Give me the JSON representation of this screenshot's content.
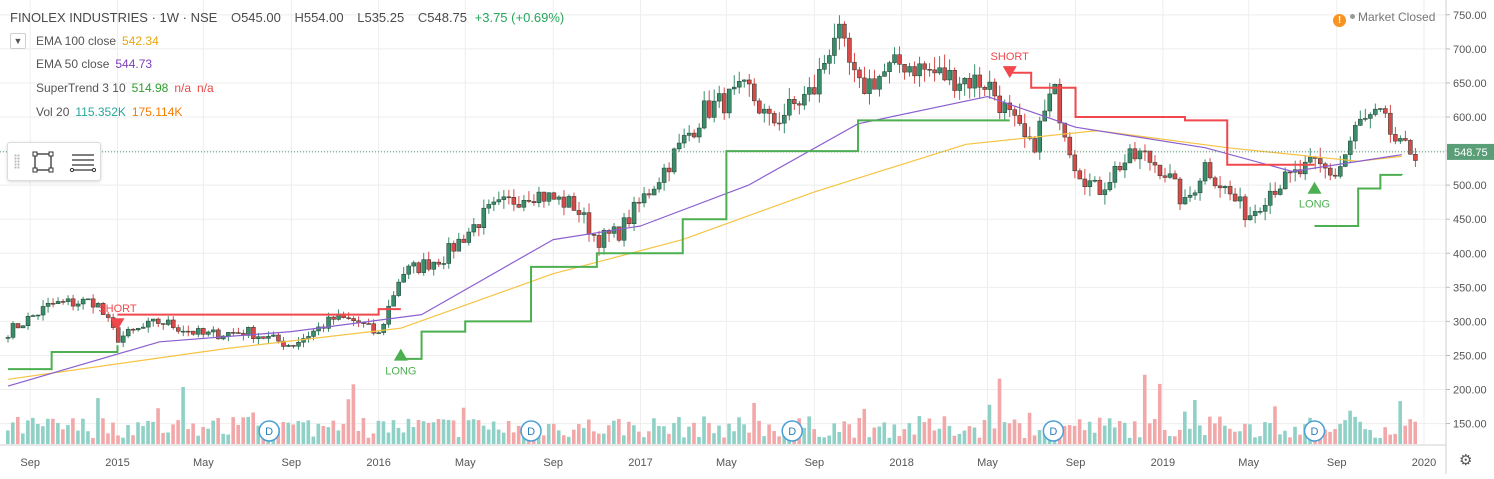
{
  "header": {
    "symbol": "FINOLEX INDUSTRIES · 1W · NSE",
    "open_label": "O",
    "open": "545.00",
    "high_label": "H",
    "high": "554.00",
    "low_label": "L",
    "low": "535.25",
    "close_label": "C",
    "close": "548.75",
    "change": "+3.75 (+0.69%)"
  },
  "indicators": [
    {
      "label": "EMA 100 close",
      "values": [
        "542.34"
      ],
      "colors": [
        "#e8a70c"
      ]
    },
    {
      "label": "EMA 50 close",
      "values": [
        "544.73"
      ],
      "colors": [
        "#7b3fb8"
      ]
    },
    {
      "label": "SuperTrend 3 10",
      "values": [
        "514.98",
        "n/a",
        "n/a"
      ],
      "colors": [
        "#2e9e2e",
        "#e84a4a",
        "#e84a4a"
      ]
    },
    {
      "label": "Vol 20",
      "values": [
        "115.352K",
        "175.114K"
      ],
      "colors": [
        "#26a69a",
        "#f57c00"
      ]
    }
  ],
  "market_status": {
    "text": "Market Closed",
    "icon": "warning-icon"
  },
  "price_tag": "548.75",
  "colors": {
    "up": "#3a8d6a",
    "down": "#d64a4a",
    "ema100": "#f6c343",
    "ema50": "#8a5fd0",
    "st_up": "#4caf50",
    "st_down": "#f0484c",
    "vol_up": "#8fd1c6",
    "vol_down": "#f2a8a8",
    "axis_text": "#555555",
    "grid": "#eeeeee",
    "price_tag_bg": "#5a9e78"
  },
  "toolbox": {
    "tools": [
      "rectangle-tool-icon",
      "menu-lines-icon"
    ]
  },
  "chart_data": {
    "type": "candlestick",
    "title": "FINOLEX INDUSTRIES · 1W · NSE",
    "x_axis": {
      "range": [
        "2014-08",
        "2020-01"
      ],
      "tick_labels": [
        "Sep",
        "2015",
        "May",
        "Sep",
        "2016",
        "May",
        "Sep",
        "2017",
        "May",
        "Sep",
        "2018",
        "May",
        "Sep",
        "2019",
        "May",
        "Sep",
        "2020"
      ]
    },
    "y_axis": {
      "range": [
        120,
        760
      ],
      "tick_labels": [
        "150.00",
        "200.00",
        "250.00",
        "300.00",
        "350.00",
        "400.00",
        "450.00",
        "500.00",
        "550.00",
        "600.00",
        "650.00",
        "700.00",
        "750.00"
      ]
    },
    "grid": true,
    "close_anchors": [
      {
        "x": "2014-08",
        "y": 285
      },
      {
        "x": "2014-10",
        "y": 325
      },
      {
        "x": "2014-12",
        "y": 330
      },
      {
        "x": "2015-01",
        "y": 275
      },
      {
        "x": "2015-03",
        "y": 300
      },
      {
        "x": "2015-05",
        "y": 280
      },
      {
        "x": "2015-07",
        "y": 285
      },
      {
        "x": "2015-09",
        "y": 265
      },
      {
        "x": "2015-11",
        "y": 305
      },
      {
        "x": "2015-12",
        "y": 300
      },
      {
        "x": "2016-01",
        "y": 280
      },
      {
        "x": "2016-02",
        "y": 370
      },
      {
        "x": "2016-04",
        "y": 395
      },
      {
        "x": "2016-06",
        "y": 460
      },
      {
        "x": "2016-08",
        "y": 490
      },
      {
        "x": "2016-10",
        "y": 470
      },
      {
        "x": "2016-11",
        "y": 420
      },
      {
        "x": "2016-12",
        "y": 430
      },
      {
        "x": "2017-02",
        "y": 520
      },
      {
        "x": "2017-04",
        "y": 610
      },
      {
        "x": "2017-06",
        "y": 640
      },
      {
        "x": "2017-07",
        "y": 590
      },
      {
        "x": "2017-09",
        "y": 640
      },
      {
        "x": "2017-10",
        "y": 730
      },
      {
        "x": "2017-11",
        "y": 640
      },
      {
        "x": "2018-01",
        "y": 680
      },
      {
        "x": "2018-03",
        "y": 660
      },
      {
        "x": "2018-05",
        "y": 650
      },
      {
        "x": "2018-07",
        "y": 550
      },
      {
        "x": "2018-08",
        "y": 640
      },
      {
        "x": "2018-09",
        "y": 530
      },
      {
        "x": "2018-10",
        "y": 490
      },
      {
        "x": "2018-11",
        "y": 530
      },
      {
        "x": "2018-12",
        "y": 545
      },
      {
        "x": "2019-01",
        "y": 525
      },
      {
        "x": "2019-02",
        "y": 470
      },
      {
        "x": "2019-03",
        "y": 530
      },
      {
        "x": "2019-04",
        "y": 490
      },
      {
        "x": "2019-05",
        "y": 455
      },
      {
        "x": "2019-06",
        "y": 495
      },
      {
        "x": "2019-08",
        "y": 530
      },
      {
        "x": "2019-09",
        "y": 515
      },
      {
        "x": "2019-10",
        "y": 590
      },
      {
        "x": "2019-11",
        "y": 600
      },
      {
        "x": "2019-12",
        "y": 550
      }
    ],
    "ema100": [
      {
        "x": "2014-08",
        "y": 215
      },
      {
        "x": "2015-06",
        "y": 260
      },
      {
        "x": "2016-02",
        "y": 290
      },
      {
        "x": "2016-09",
        "y": 370
      },
      {
        "x": "2017-03",
        "y": 420
      },
      {
        "x": "2017-09",
        "y": 490
      },
      {
        "x": "2018-04",
        "y": 560
      },
      {
        "x": "2018-10",
        "y": 580
      },
      {
        "x": "2019-04",
        "y": 555
      },
      {
        "x": "2019-10",
        "y": 535
      },
      {
        "x": "2019-12",
        "y": 542.34
      }
    ],
    "ema50": [
      {
        "x": "2014-08",
        "y": 205
      },
      {
        "x": "2015-03",
        "y": 270
      },
      {
        "x": "2015-09",
        "y": 285
      },
      {
        "x": "2016-03",
        "y": 310
      },
      {
        "x": "2016-09",
        "y": 420
      },
      {
        "x": "2017-01",
        "y": 440
      },
      {
        "x": "2017-06",
        "y": 500
      },
      {
        "x": "2017-11",
        "y": 590
      },
      {
        "x": "2018-05",
        "y": 630
      },
      {
        "x": "2018-09",
        "y": 585
      },
      {
        "x": "2019-03",
        "y": 555
      },
      {
        "x": "2019-07",
        "y": 520
      },
      {
        "x": "2019-12",
        "y": 544.73
      }
    ],
    "supertrend_up_1": [
      {
        "x": "2014-08",
        "y": 230
      },
      {
        "x": "2014-10",
        "y": 255
      },
      {
        "x": "2015-01",
        "y": 260
      },
      {
        "x": "2015-01",
        "y": 265
      }
    ],
    "supertrend_down_1": [
      {
        "x": "2015-01",
        "y": 310
      },
      {
        "x": "2015-12",
        "y": 310
      },
      {
        "x": "2016-01",
        "y": 318
      },
      {
        "x": "2016-02",
        "y": 318
      }
    ],
    "supertrend_up_2": [
      {
        "x": "2016-02",
        "y": 245
      },
      {
        "x": "2016-03",
        "y": 285
      },
      {
        "x": "2016-05",
        "y": 300
      },
      {
        "x": "2016-08",
        "y": 380
      },
      {
        "x": "2016-11",
        "y": 400
      },
      {
        "x": "2017-01",
        "y": 400
      },
      {
        "x": "2017-03",
        "y": 450
      },
      {
        "x": "2017-05",
        "y": 550
      },
      {
        "x": "2017-10",
        "y": 550
      },
      {
        "x": "2017-11",
        "y": 595
      },
      {
        "x": "2018-06",
        "y": 595
      }
    ],
    "supertrend_down_2": [
      {
        "x": "2018-06",
        "y": 665
      },
      {
        "x": "2018-07",
        "y": 643
      },
      {
        "x": "2018-08",
        "y": 643
      },
      {
        "x": "2018-09",
        "y": 600
      },
      {
        "x": "2018-12",
        "y": 600
      },
      {
        "x": "2019-02",
        "y": 595
      },
      {
        "x": "2019-04",
        "y": 530
      },
      {
        "x": "2019-08",
        "y": 530
      }
    ],
    "supertrend_up_3": [
      {
        "x": "2019-08",
        "y": 440
      },
      {
        "x": "2019-09",
        "y": 440
      },
      {
        "x": "2019-10",
        "y": 495
      },
      {
        "x": "2019-11",
        "y": 515
      },
      {
        "x": "2019-12",
        "y": 514.98
      }
    ],
    "signals": [
      {
        "type": "SHORT",
        "x": "2015-01",
        "y": 290
      },
      {
        "type": "LONG",
        "x": "2016-02",
        "y": 260
      },
      {
        "type": "SHORT",
        "x": "2018-06",
        "y": 660
      },
      {
        "type": "LONG",
        "x": "2019-08",
        "y": 505
      }
    ],
    "volume": {
      "label": "Vol 20",
      "values": [
        "115.352K",
        "175.114K"
      ]
    },
    "dividends": [
      {
        "x": "2015-08",
        "label": "D"
      },
      {
        "x": "2016-08",
        "label": "D"
      },
      {
        "x": "2017-08",
        "label": "D"
      },
      {
        "x": "2018-08",
        "label": "D"
      },
      {
        "x": "2019-08",
        "label": "D"
      }
    ]
  }
}
